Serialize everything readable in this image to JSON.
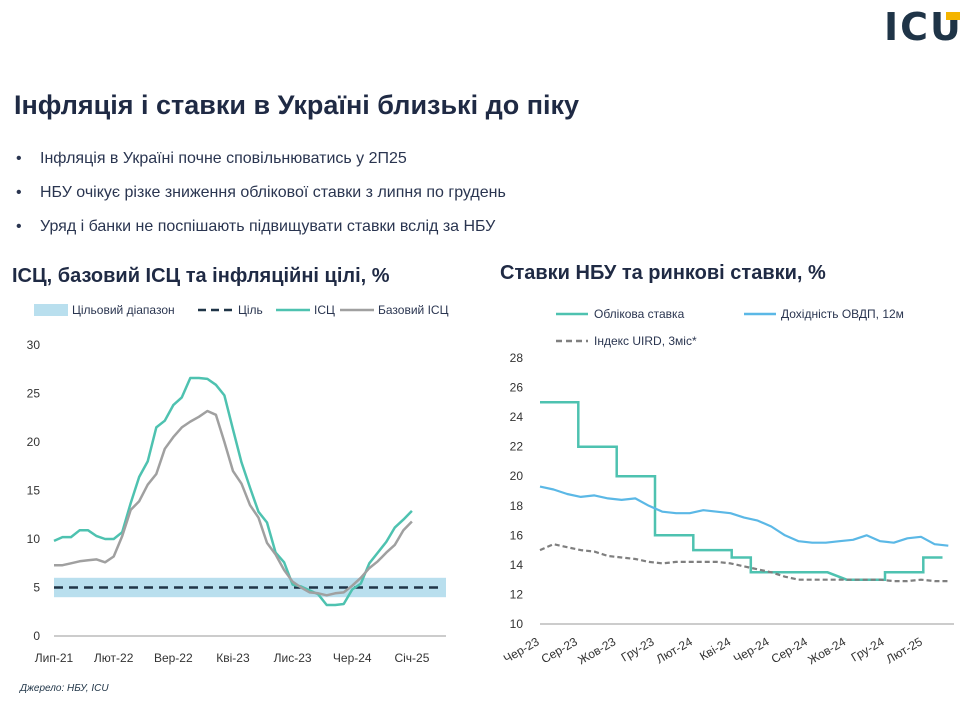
{
  "logo": "ICU",
  "title": "Інфляція і ставки в Україні близькі до піку",
  "bullets": [
    "Інфляція в Україні почне сповільнюватись у 2П25",
    "НБУ очікує різке зниження облікової ставки з липня по грудень",
    "Уряд і банки не поспішають підвищувати ставки вслід за НБУ"
  ],
  "source": "Джерело: НБУ, ICU",
  "colors": {
    "teal": "#4ec2b0",
    "gray": "#a0a0a0",
    "target_band": "#b9dfee",
    "target_line": "#1f3447",
    "light_blue": "#5bb8e6",
    "dark_gray_dash": "#7f7f7f"
  },
  "chart_data": [
    {
      "type": "line",
      "title": "ІСЦ, базовий ІСЦ та інфляційні цілі, %",
      "legend": [
        "Цільовий діапазон",
        "Ціль",
        "ІСЦ",
        "Базовий ІСЦ"
      ],
      "legend_position": "top",
      "ylim": [
        0,
        30
      ],
      "yticks": [
        0,
        5,
        10,
        15,
        20,
        25,
        30
      ],
      "xtick_labels": [
        "Лип-21",
        "Лют-22",
        "Вер-22",
        "Кві-23",
        "Лис-23",
        "Чер-24",
        "Січ-25"
      ],
      "x": [
        "Лип-21",
        "Сер-21",
        "Вер-21",
        "Жов-21",
        "Лис-21",
        "Гру-21",
        "Січ-22",
        "Лют-22",
        "Бер-22",
        "Кві-22",
        "Тра-22",
        "Чер-22",
        "Лип-22",
        "Сер-22",
        "Вер-22",
        "Жов-22",
        "Лис-22",
        "Гру-22",
        "Січ-23",
        "Лют-23",
        "Бер-23",
        "Кві-23",
        "Тра-23",
        "Чер-23",
        "Лип-23",
        "Сер-23",
        "Вер-23",
        "Жов-23",
        "Лис-23",
        "Гру-23",
        "Січ-24",
        "Лют-24",
        "Бер-24",
        "Кві-24",
        "Тра-24",
        "Чер-24",
        "Лип-24",
        "Сер-24",
        "Вер-24",
        "Жов-24",
        "Лис-24",
        "Гру-24",
        "Січ-25",
        "Лют-25",
        "Бер-25",
        "Кві-25",
        "Тра-25"
      ],
      "target_range": [
        4,
        6
      ],
      "target": 5,
      "series": [
        {
          "name": "ІСЦ",
          "values": [
            9.8,
            10.2,
            10.2,
            10.9,
            10.9,
            10.3,
            10.0,
            10.0,
            10.7,
            13.7,
            16.4,
            18.0,
            21.5,
            22.2,
            23.8,
            24.6,
            26.6,
            26.6,
            26.5,
            25.9,
            24.8,
            21.3,
            17.9,
            15.3,
            12.8,
            11.7,
            8.6,
            7.6,
            5.3,
            5.1,
            4.7,
            4.3,
            3.2,
            3.2,
            3.3,
            4.8,
            5.4,
            7.5,
            8.6,
            9.7,
            11.2,
            12.0,
            12.9,
            null,
            null,
            null,
            null
          ]
        },
        {
          "name": "Базовий ІСЦ",
          "values": [
            7.3,
            7.3,
            7.5,
            7.7,
            7.8,
            7.9,
            7.6,
            8.2,
            10.3,
            13.0,
            13.9,
            15.6,
            16.7,
            19.3,
            20.5,
            21.5,
            22.1,
            22.6,
            23.2,
            22.8,
            20.0,
            17.0,
            15.7,
            13.5,
            12.2,
            9.6,
            8.4,
            6.8,
            5.6,
            5.0,
            4.5,
            4.4,
            4.2,
            4.4,
            4.5,
            5.2,
            6.0,
            7.0,
            7.7,
            8.6,
            9.4,
            10.9,
            11.8,
            null,
            null,
            null,
            null
          ]
        }
      ]
    },
    {
      "type": "line",
      "title": "Ставки НБУ та ринкові ставки, %",
      "legend": [
        "Облікова ставка",
        "Дохідність ОВДП, 12м",
        "Індекс UIRD, 3міс*"
      ],
      "legend_position": "top",
      "ylim": [
        10,
        28
      ],
      "yticks": [
        10,
        12,
        14,
        16,
        18,
        20,
        22,
        24,
        26,
        28
      ],
      "xtick_labels": [
        "Чер-23",
        "Сер-23",
        "Жов-23",
        "Гру-23",
        "Лют-24",
        "Кві-24",
        "Чер-24",
        "Сер-24",
        "Жов-24",
        "Гру-24",
        "Лют-25"
      ],
      "series": [
        {
          "name": "Облікова ставка",
          "points": [
            [
              "Чер-23",
              25
            ],
            [
              "Лип-23",
              25
            ],
            [
              "Сер-23",
              25
            ],
            [
              "Сер-23",
              22
            ],
            [
              "Вер-23",
              22
            ],
            [
              "Жов-23",
              22
            ],
            [
              "Жов-23",
              20
            ],
            [
              "Лис-23",
              20
            ],
            [
              "Гру-23",
              20
            ],
            [
              "Гру-23",
              16
            ],
            [
              "Січ-24",
              16
            ],
            [
              "Лют-24",
              16
            ],
            [
              "Лют-24",
              15
            ],
            [
              "Бер-24",
              15
            ],
            [
              "Кві-24",
              15
            ],
            [
              "Кві-24",
              14.5
            ],
            [
              "Тра-24",
              14.5
            ],
            [
              "Тра-24",
              13.5
            ],
            [
              "Чер-24",
              13.5
            ],
            [
              "Лип-24",
              13.5
            ],
            [
              "Сер-24",
              13.5
            ],
            [
              "Вер-24",
              13.5
            ],
            [
              "Жов-24",
              13
            ],
            [
              "Лис-24",
              13
            ],
            [
              "Гру-24",
              13
            ],
            [
              "Гру-24",
              13.5
            ],
            [
              "Січ-25",
              13.5
            ],
            [
              "Лют-25",
              13.5
            ],
            [
              "Лют-25",
              14.5
            ],
            [
              "Бер-25",
              14.5
            ]
          ]
        },
        {
          "name": "Дохідність ОВДП, 12м",
          "values": [
            19.3,
            19.1,
            18.8,
            18.6,
            18.7,
            18.5,
            18.4,
            18.5,
            18.0,
            17.6,
            17.5,
            17.5,
            17.7,
            17.6,
            17.5,
            17.2,
            17.0,
            16.6,
            16.0,
            15.6,
            15.5,
            15.5,
            15.6,
            15.7,
            16.0,
            15.6,
            15.5,
            15.8,
            15.9,
            15.4,
            15.3
          ]
        },
        {
          "name": "Індекс UIRD, 3міс*",
          "values": [
            15.0,
            15.4,
            15.2,
            15.0,
            14.9,
            14.6,
            14.5,
            14.4,
            14.2,
            14.1,
            14.2,
            14.2,
            14.2,
            14.2,
            14.1,
            13.9,
            13.7,
            13.5,
            13.2,
            13.0,
            13.0,
            13.0,
            13.0,
            13.0,
            13.0,
            13.0,
            12.9,
            12.9,
            13.0,
            12.9,
            12.9
          ]
        }
      ]
    }
  ]
}
